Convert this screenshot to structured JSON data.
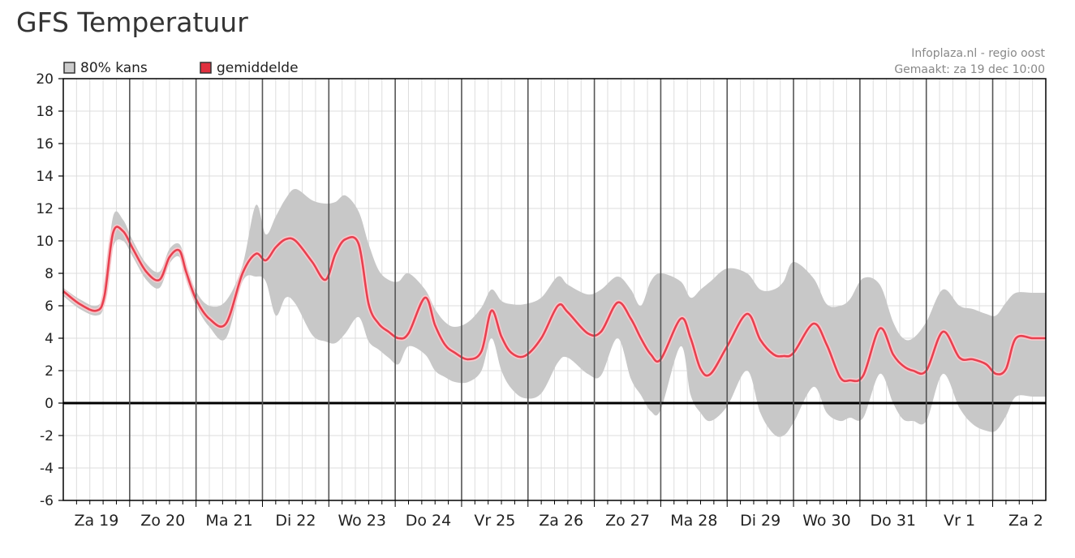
{
  "page": {
    "title": "GFS Temperatuur"
  },
  "source": {
    "line1": "Infoplaza.nl - regio oost",
    "line2": "Gemaakt: za 19 dec 10:00"
  },
  "legend": {
    "band": {
      "label": "80% kans",
      "color": "#cccccc"
    },
    "mean": {
      "label": "gemiddelde",
      "color": "#e0303f"
    }
  },
  "colors": {
    "band": "#c8c8c8",
    "mean": "#e8404f",
    "zero_line": "#000000",
    "grid": "#dddddd",
    "day_line": "#555555"
  },
  "chart_data": {
    "type": "area",
    "title": "GFS Temperatuur",
    "xlabel": "",
    "ylabel": "",
    "ylim": [
      -6,
      20
    ],
    "yticks": [
      -6,
      -4,
      -2,
      0,
      2,
      4,
      6,
      8,
      10,
      12,
      14,
      16,
      18,
      20
    ],
    "xlim": [
      0,
      14.8
    ],
    "day_labels": [
      "Za 19",
      "Zo 20",
      "Ma 21",
      "Di 22",
      "Wo 23",
      "Do 24",
      "Vr 25",
      "Za 26",
      "Zo 27",
      "Ma 28",
      "Di 29",
      "Wo 30",
      "Do 31",
      "Vr 1",
      "Za 2"
    ],
    "grid": true,
    "legend_position": "top-left",
    "x": [
      0.0,
      0.25,
      0.5,
      0.62,
      0.75,
      0.9,
      1.05,
      1.25,
      1.45,
      1.6,
      1.75,
      1.85,
      2.0,
      2.2,
      2.45,
      2.7,
      2.9,
      3.05,
      3.2,
      3.35,
      3.5,
      3.75,
      3.95,
      4.1,
      4.25,
      4.45,
      4.6,
      4.75,
      4.9,
      5.05,
      5.2,
      5.45,
      5.6,
      5.75,
      5.9,
      6.1,
      6.3,
      6.45,
      6.6,
      6.75,
      6.95,
      7.2,
      7.45,
      7.6,
      7.9,
      8.1,
      8.35,
      8.55,
      8.7,
      8.85,
      9.0,
      9.3,
      9.45,
      9.6,
      9.75,
      10.0,
      10.3,
      10.5,
      10.7,
      10.85,
      11.0,
      11.3,
      11.5,
      11.7,
      11.85,
      12.05,
      12.3,
      12.5,
      12.65,
      12.8,
      13.0,
      13.25,
      13.5,
      13.7,
      13.9,
      14.05,
      14.2,
      14.35,
      14.6,
      14.8
    ],
    "series": [
      {
        "name": "gemiddelde",
        "values": [
          6.9,
          6.1,
          5.7,
          6.6,
          10.5,
          10.6,
          9.5,
          8.1,
          7.6,
          9.0,
          9.4,
          8.1,
          6.4,
          5.2,
          4.9,
          8.0,
          9.2,
          8.8,
          9.6,
          10.1,
          10.0,
          8.7,
          7.6,
          9.2,
          10.1,
          9.8,
          6.1,
          4.9,
          4.4,
          4.0,
          4.3,
          6.5,
          4.8,
          3.6,
          3.1,
          2.7,
          3.2,
          5.7,
          4.1,
          3.1,
          2.9,
          4.0,
          6.0,
          5.6,
          4.3,
          4.4,
          6.2,
          5.2,
          4.0,
          3.0,
          2.7,
          5.2,
          4.0,
          2.1,
          1.8,
          3.5,
          5.5,
          3.9,
          3.0,
          2.9,
          3.1,
          4.9,
          3.6,
          1.6,
          1.4,
          1.7,
          4.6,
          3.0,
          2.3,
          2.0,
          2.0,
          4.4,
          2.8,
          2.7,
          2.4,
          1.8,
          2.1,
          4.0,
          4.0,
          4.0
        ]
      },
      {
        "name": "80% kans (boven)",
        "values": [
          7.1,
          6.4,
          6.0,
          7.0,
          11.5,
          11.3,
          10.0,
          8.6,
          8.1,
          9.5,
          9.8,
          8.6,
          6.9,
          6.0,
          6.3,
          8.5,
          12.2,
          10.4,
          11.5,
          12.6,
          13.2,
          12.5,
          12.3,
          12.4,
          12.8,
          11.8,
          9.8,
          8.2,
          7.6,
          7.5,
          8.0,
          7.0,
          5.8,
          5.0,
          4.7,
          5.0,
          5.9,
          7.0,
          6.3,
          6.1,
          6.1,
          6.5,
          7.8,
          7.3,
          6.7,
          7.0,
          7.8,
          7.0,
          6.0,
          7.5,
          8.0,
          7.5,
          6.5,
          7.0,
          7.5,
          8.3,
          8.0,
          7.0,
          7.0,
          7.5,
          8.7,
          7.7,
          6.1,
          6.0,
          6.4,
          7.7,
          7.3,
          5.0,
          4.0,
          4.0,
          5.0,
          7.0,
          6.0,
          5.8,
          5.5,
          5.4,
          6.2,
          6.8,
          6.8,
          6.8
        ]
      },
      {
        "name": "80% kans (onder)",
        "values": [
          6.6,
          5.8,
          5.4,
          6.1,
          9.6,
          10.0,
          9.0,
          7.6,
          7.1,
          8.6,
          9.0,
          7.6,
          6.0,
          4.7,
          4.0,
          7.5,
          7.8,
          7.5,
          5.4,
          6.5,
          6.1,
          4.2,
          3.8,
          3.7,
          4.3,
          5.3,
          3.8,
          3.3,
          2.8,
          2.4,
          3.5,
          3.0,
          2.0,
          1.6,
          1.3,
          1.3,
          2.0,
          4.0,
          2.0,
          0.9,
          0.3,
          0.6,
          2.5,
          2.8,
          1.8,
          1.7,
          4.0,
          1.5,
          0.5,
          -0.5,
          -0.4,
          3.5,
          0.5,
          -0.6,
          -1.1,
          -0.2,
          2.0,
          -0.6,
          -1.9,
          -2.0,
          -1.2,
          1.0,
          -0.6,
          -1.1,
          -0.9,
          -0.9,
          1.8,
          0.0,
          -1.0,
          -1.1,
          -1.1,
          1.8,
          -0.3,
          -1.3,
          -1.7,
          -1.7,
          -0.8,
          0.4,
          0.4,
          0.4
        ]
      }
    ]
  }
}
